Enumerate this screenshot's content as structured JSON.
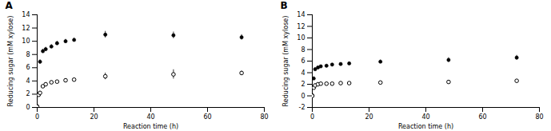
{
  "chart_data": [
    {
      "type": "scatter",
      "title": "A",
      "xlabel": "Reaction time (h)",
      "ylabel": "Reducing sugar (mM xylose)",
      "xlim": [
        0,
        80
      ],
      "ylim": [
        0,
        14
      ],
      "xticks": [
        0,
        20,
        40,
        60,
        80
      ],
      "yticks": [
        0,
        2,
        4,
        6,
        8,
        10,
        12,
        14
      ],
      "grid": false,
      "series": [
        {
          "marker": "circle",
          "color": "black",
          "x": [
            0,
            0.5,
            1,
            2,
            3,
            5,
            7,
            10,
            13,
            24,
            48,
            72
          ],
          "values": [
            0.2,
            2.0,
            6.9,
            8.5,
            8.8,
            9.2,
            9.7,
            10.0,
            10.2,
            11.0,
            10.9,
            10.6
          ],
          "yerr": [
            0.1,
            0.2,
            0.3,
            0.3,
            0.3,
            0.3,
            0.3,
            0.3,
            0.3,
            0.5,
            0.5,
            0.4
          ]
        },
        {
          "marker": "circle_open",
          "color": "black",
          "x": [
            0,
            0.5,
            1,
            2,
            3,
            5,
            7,
            10,
            13,
            24,
            48,
            72
          ],
          "values": [
            0.1,
            1.9,
            2.2,
            3.2,
            3.5,
            3.8,
            3.9,
            4.1,
            4.2,
            4.7,
            5.0,
            5.2
          ],
          "yerr": [
            0.1,
            0.2,
            0.2,
            0.2,
            0.2,
            0.2,
            0.2,
            0.2,
            0.2,
            0.5,
            0.7,
            0.3
          ]
        }
      ]
    },
    {
      "type": "scatter",
      "title": "B",
      "xlabel": "Reaction time (h)",
      "ylabel": "Reducing sugar (mM xylose)",
      "xlim": [
        0,
        80
      ],
      "ylim": [
        -2,
        14
      ],
      "xticks": [
        0,
        20,
        40,
        60,
        80
      ],
      "yticks": [
        -2,
        0,
        2,
        4,
        6,
        8,
        10,
        12,
        14
      ],
      "grid": false,
      "series": [
        {
          "marker": "circle",
          "color": "black",
          "x": [
            0,
            0.5,
            1,
            2,
            3,
            5,
            7,
            10,
            13,
            24,
            48,
            72
          ],
          "values": [
            0.1,
            3.0,
            4.6,
            4.9,
            5.1,
            5.2,
            5.4,
            5.5,
            5.6,
            5.9,
            6.2,
            6.6
          ],
          "yerr": [
            0.1,
            0.3,
            0.2,
            0.2,
            0.2,
            0.2,
            0.2,
            0.2,
            0.2,
            0.3,
            0.4,
            0.4
          ]
        },
        {
          "marker": "circle_open",
          "color": "black",
          "x": [
            0,
            0.5,
            1,
            2,
            3,
            5,
            7,
            10,
            13,
            24,
            48,
            72
          ],
          "values": [
            0.0,
            1.4,
            1.8,
            2.0,
            2.1,
            2.1,
            2.1,
            2.2,
            2.2,
            2.3,
            2.4,
            2.6
          ],
          "yerr": [
            0.05,
            0.15,
            0.15,
            0.15,
            0.1,
            0.1,
            0.1,
            0.1,
            0.1,
            0.15,
            0.2,
            0.2
          ]
        }
      ]
    }
  ]
}
